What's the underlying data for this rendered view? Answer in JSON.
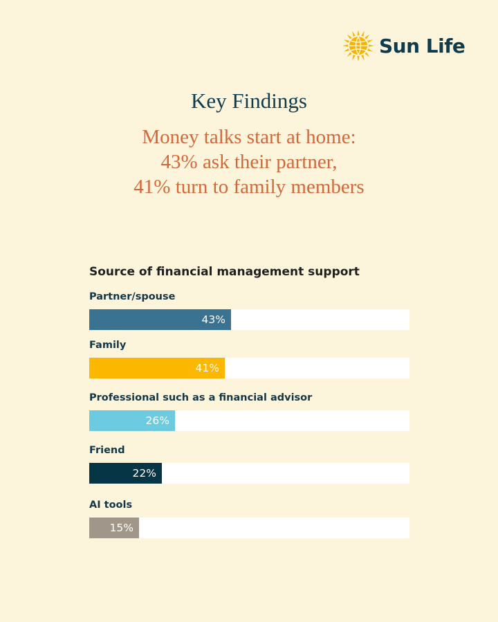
{
  "brand": {
    "name": "Sun Life",
    "text_color": "#0f3b4e",
    "logo_color": "#f5b400"
  },
  "header": {
    "title": "Key Findings",
    "subtitle_lines": [
      "Money talks start at home:",
      "43% ask their partner,",
      "41% turn to family members"
    ]
  },
  "chart_data": {
    "type": "bar",
    "orientation": "horizontal",
    "title": "Source of financial management support",
    "categories": [
      "Partner/spouse",
      "Family",
      "Professional such as a financial advisor",
      "Friend",
      "AI tools"
    ],
    "values": [
      43,
      41,
      26,
      22,
      15
    ],
    "value_labels": [
      "43%",
      "41%",
      "26%",
      "22%",
      "15%"
    ],
    "colors": [
      "#3a7291",
      "#fcb700",
      "#6ccbe0",
      "#063546",
      "#a0978a"
    ],
    "xlim": [
      0,
      97
    ],
    "unit": "%",
    "grid": false,
    "legend": "none"
  }
}
